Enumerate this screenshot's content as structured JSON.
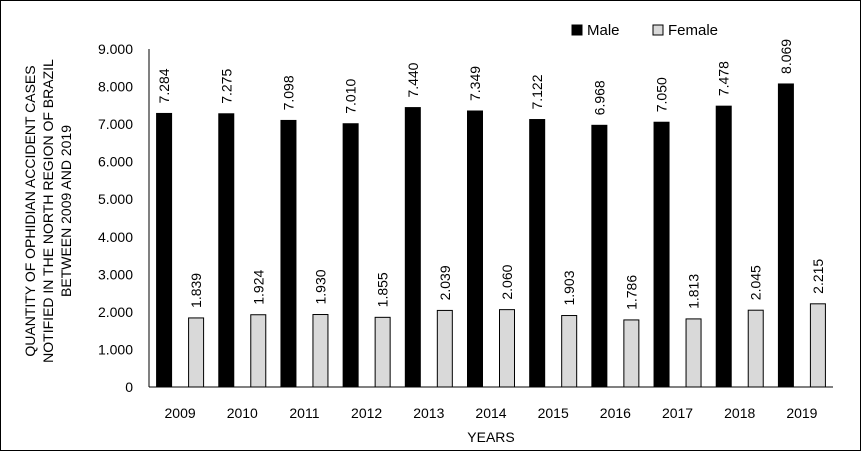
{
  "chart_data": {
    "type": "bar",
    "title": "",
    "xlabel": "YEARS",
    "ylabel_lines": [
      "QUANTITY OF OPHIDIAN ACCIDENT CASES",
      "NOTIFIED IN THE NORTH REGION OF BRAZIL",
      "BETWEEN 2009 AND 2019"
    ],
    "ylim": [
      0,
      9000
    ],
    "yticks": [
      0,
      1000,
      2000,
      3000,
      4000,
      5000,
      6000,
      7000,
      8000,
      9000
    ],
    "ytick_labels": [
      "0",
      "1.000",
      "2.000",
      "3.000",
      "4.000",
      "5.000",
      "6.000",
      "7.000",
      "8.000",
      "9.000"
    ],
    "grid": false,
    "legend_position": "top-right",
    "categories": [
      "2009",
      "2010",
      "2011",
      "2012",
      "2013",
      "2014",
      "2015",
      "2016",
      "2017",
      "2018",
      "2019"
    ],
    "series": [
      {
        "name": "Male",
        "color": "#000000",
        "values": [
          7284,
          7275,
          7098,
          7010,
          7440,
          7349,
          7122,
          6968,
          7050,
          7478,
          8069
        ],
        "labels": [
          "7.284",
          "7.275",
          "7.098",
          "7.010",
          "7.440",
          "7.349",
          "7.122",
          "6.968",
          "7.050",
          "7.478",
          "8.069"
        ]
      },
      {
        "name": "Female",
        "color": "#d9d9d9",
        "values": [
          1839,
          1924,
          1930,
          1855,
          2039,
          2060,
          1903,
          1786,
          1813,
          2045,
          2215
        ],
        "labels": [
          "1.839",
          "1.924",
          "1.930",
          "1.855",
          "2.039",
          "2.060",
          "1.903",
          "1.786",
          "1.813",
          "2.045",
          "2.215"
        ]
      }
    ]
  }
}
